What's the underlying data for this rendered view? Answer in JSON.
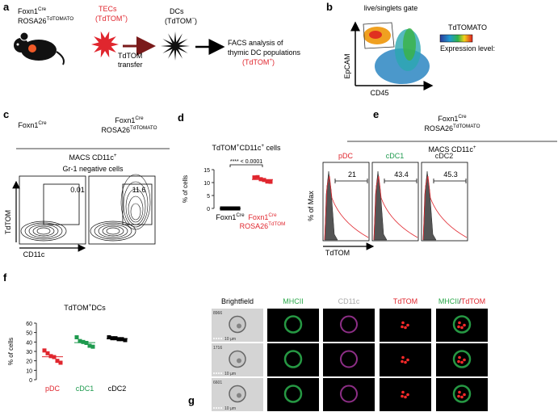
{
  "panels": {
    "a": {
      "letter": "a",
      "mouse": [
        [
          {
            "t": "Foxn1"
          },
          {
            "t": "Cre",
            "sup": true
          }
        ],
        [
          {
            "t": "ROSA26"
          },
          {
            "t": "TdTOMATO",
            "sup": true
          }
        ]
      ],
      "tecs": [
        "TECs",
        [
          {
            "t": "(TdTOM"
          },
          {
            "t": "+",
            "sup": true
          },
          {
            "t": ")"
          }
        ]
      ],
      "transfer": [
        "TdTOM",
        "transfer"
      ],
      "dcs": [
        "DCs",
        [
          {
            "t": "(TdTOM"
          },
          {
            "t": "−",
            "sup": true
          },
          {
            "t": ")"
          }
        ]
      ],
      "facs": [
        "FACS analysis of",
        "thymic DC populations",
        [
          {
            "t": "(TdTOM"
          },
          {
            "t": "+",
            "sup": true
          },
          {
            "t": ")"
          }
        ]
      ]
    },
    "b": {
      "letter": "b",
      "gate": "live/singlets gate",
      "y_label": "EpCAM",
      "x_label": "CD45",
      "legend_title": "TdTOMATO",
      "legend_note": "Expression level:"
    },
    "c": {
      "letter": "c",
      "left_title": [
        {
          "t": "Foxn1"
        },
        {
          "t": "Cre",
          "sup": true
        }
      ],
      "right_title": [
        [
          {
            "t": "Foxn1"
          },
          {
            "t": "Cre",
            "sup": true
          }
        ],
        [
          {
            "t": "ROSA26"
          },
          {
            "t": "TdTOMATO",
            "sup": true
          }
        ]
      ],
      "group": [
        {
          "t": "MACS CD11c"
        },
        {
          "t": "+",
          "sup": true
        }
      ],
      "subgroup": "Gr-1 negative cells",
      "gates": [
        "0.01",
        "11.6"
      ],
      "y_label": "TdTOM",
      "x_label": "CD11c"
    },
    "e": {
      "letter": "e",
      "title": [
        [
          {
            "t": "Foxn1"
          },
          {
            "t": "Cre",
            "sup": true
          }
        ],
        [
          {
            "t": "ROSA26"
          },
          {
            "t": "TdTOMATO",
            "sup": true
          }
        ]
      ],
      "group": [
        {
          "t": "MACS CD11c"
        },
        {
          "t": "+",
          "sup": true
        }
      ],
      "plots": [
        {
          "name": "pDC",
          "color": "#e0262e",
          "gate": "21"
        },
        {
          "name": "cDC1",
          "color": "#1e9a4e",
          "gate": "43.4"
        },
        {
          "name": "cDC2",
          "color": "#222222",
          "gate": "45.3"
        }
      ],
      "y_label": "% of Max",
      "x_label": "TdTOM"
    },
    "g": {
      "letter": "g",
      "columns": [
        [
          {
            "t": "Brightfield",
            "color": "#000000"
          }
        ],
        [
          {
            "t": "MHCII",
            "color": "#2aa84a"
          }
        ],
        [
          {
            "t": "CD11c",
            "color": "#aaaaaa"
          }
        ],
        [
          {
            "t": "TdTOM",
            "color": "#e0262e"
          }
        ],
        [
          {
            "t": "MHCII",
            "color": "#2aa84a"
          },
          {
            "t": "/",
            "color": "#000000"
          },
          {
            "t": "TdTOM",
            "color": "#e0262e"
          }
        ]
      ],
      "rows": [
        "8966",
        "1716",
        "6601"
      ],
      "scale": "10 µm"
    }
  },
  "chart_data": [
    {
      "type": "dot",
      "letter": "d",
      "title": [
        {
          "t": "TdTOM"
        },
        {
          "t": "+",
          "sup": true
        },
        {
          "t": "CD11c"
        },
        {
          "t": "+",
          "sup": true
        },
        {
          "t": " cells"
        }
      ],
      "y_label": "% of cells",
      "annotation": "**** < 0.0001",
      "categories": [
        [
          [
            {
              "t": "Foxn1"
            },
            {
              "t": "Cre",
              "sup": true
            }
          ]
        ],
        [
          [
            {
              "t": "Foxn1"
            },
            {
              "t": "Cre",
              "sup": true
            }
          ],
          [
            {
              "t": "ROSA26"
            },
            {
              "t": "TdTOM",
              "sup": true
            }
          ]
        ]
      ],
      "colors": [
        "#000000",
        "#e0262e"
      ],
      "values": [
        [
          0,
          0,
          0,
          0,
          0,
          0
        ],
        [
          12.0,
          12.1,
          11.3,
          11.0,
          10.4,
          10.3
        ]
      ],
      "ylim": [
        0,
        15
      ],
      "yticks": [
        0,
        5,
        10,
        15
      ]
    },
    {
      "type": "dot",
      "letter": "f",
      "title": [
        {
          "t": "TdTOM"
        },
        {
          "t": "+",
          "sup": true
        },
        {
          "t": "DCs"
        }
      ],
      "y_label": "% of cells",
      "categories": [
        [
          [
            {
              "t": "pDC"
            }
          ]
        ],
        [
          [
            {
              "t": "cDC1"
            }
          ]
        ],
        [
          [
            {
              "t": "cDC2"
            }
          ]
        ]
      ],
      "colors": [
        "#e0262e",
        "#1e9a4e",
        "#000000"
      ],
      "values": [
        [
          31,
          28,
          25,
          24,
          20,
          18
        ],
        [
          45,
          41,
          40,
          39,
          36,
          35
        ],
        [
          45,
          44,
          44,
          43,
          43,
          42
        ]
      ],
      "ylim": [
        0,
        60
      ],
      "yticks": [
        0,
        10,
        20,
        30,
        40,
        50,
        60
      ]
    }
  ]
}
